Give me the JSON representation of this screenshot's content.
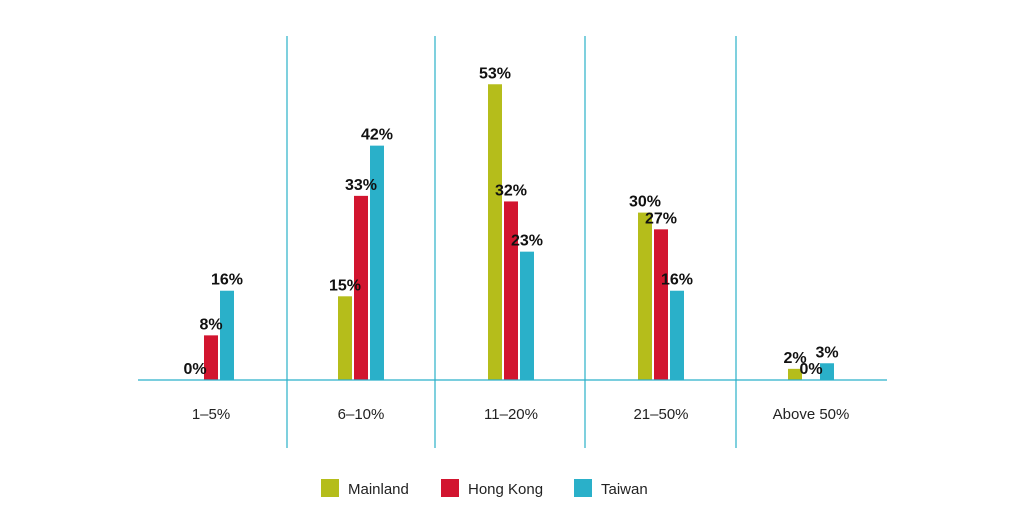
{
  "chart_data": {
    "type": "bar",
    "categories": [
      "1–5%",
      "6–10%",
      "11–20%",
      "21–50%",
      "Above 50%"
    ],
    "series": [
      {
        "name": "Mainland",
        "color": "#b5bd1b",
        "values": [
          0,
          15,
          53,
          30,
          2
        ],
        "labels": [
          "0%",
          "15%",
          "53%",
          "30%",
          "2%"
        ]
      },
      {
        "name": "Hong Kong",
        "color": "#d2152f",
        "values": [
          8,
          33,
          32,
          27,
          0
        ],
        "labels": [
          "8%",
          "33%",
          "32%",
          "27%",
          "0%"
        ]
      },
      {
        "name": "Taiwan",
        "color": "#2ab0c9",
        "values": [
          16,
          42,
          23,
          16,
          3
        ],
        "labels": [
          "16%",
          "42%",
          "23%",
          "16%",
          "3%"
        ]
      }
    ],
    "ylim": [
      0,
      60
    ],
    "grid": false,
    "legend_position": "bottom",
    "axis_color": "#2ab0c9"
  }
}
